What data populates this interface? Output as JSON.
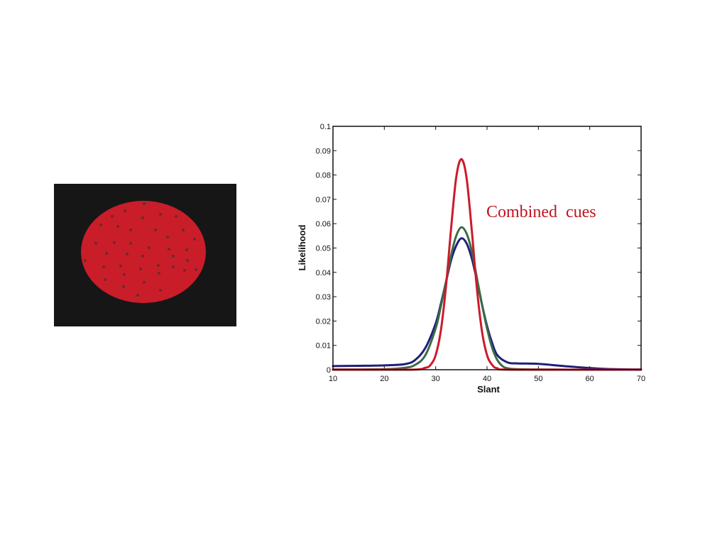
{
  "stimulus": {
    "background_color": "#161616",
    "ellipse_color": "#c91d2a",
    "dot_color": "#6e2a2a"
  },
  "chart_data": {
    "type": "line",
    "xlabel": "Slant",
    "ylabel": "Likelihood",
    "xlim": [
      10,
      70
    ],
    "ylim": [
      0,
      0.1
    ],
    "xticks": [
      10,
      20,
      30,
      40,
      50,
      60,
      70
    ],
    "yticks": [
      0,
      0.01,
      0.02,
      0.03,
      0.04,
      0.05,
      0.06,
      0.07,
      0.08,
      0.09,
      0.1
    ],
    "ytick_labels": [
      "0",
      "0.01",
      "0.02",
      "0.03",
      "0.04",
      "0.05",
      "0.06",
      "0.07",
      "0.08",
      "0.09",
      "0.1"
    ],
    "grid": false,
    "annotation": {
      "text": "Combined  cues",
      "color": "#c0141e"
    },
    "series": [
      {
        "color": "#1f1f7a",
        "x": [
          10,
          15,
          20,
          24,
          26,
          28,
          30,
          31,
          32,
          33,
          34,
          35,
          36,
          37,
          38,
          39,
          40,
          41,
          42,
          44,
          46,
          50,
          55,
          60,
          65,
          70
        ],
        "y": [
          0.0015,
          0.0016,
          0.0018,
          0.0023,
          0.004,
          0.009,
          0.019,
          0.027,
          0.036,
          0.045,
          0.051,
          0.054,
          0.052,
          0.046,
          0.037,
          0.027,
          0.018,
          0.011,
          0.006,
          0.003,
          0.0026,
          0.0024,
          0.0015,
          0.0007,
          0.0002,
          0.0001
        ]
      },
      {
        "color": "#3a6b48",
        "x": [
          10,
          20,
          24,
          26,
          28,
          30,
          31,
          32,
          33,
          34,
          35,
          36,
          37,
          38,
          39,
          40,
          41,
          42,
          43,
          44,
          46,
          50,
          60,
          70
        ],
        "y": [
          0.0001,
          0.0002,
          0.0008,
          0.002,
          0.006,
          0.017,
          0.026,
          0.036,
          0.047,
          0.055,
          0.0585,
          0.056,
          0.049,
          0.038,
          0.027,
          0.017,
          0.009,
          0.004,
          0.0015,
          0.0006,
          0.0002,
          0.0001,
          0.0,
          0.0
        ]
      },
      {
        "color": "#cc1a2b",
        "x": [
          10,
          25,
          28,
          29,
          30,
          31,
          32,
          33,
          34,
          35,
          36,
          37,
          38,
          39,
          40,
          41,
          42,
          45,
          70
        ],
        "y": [
          0.0,
          0.0,
          0.0008,
          0.002,
          0.006,
          0.016,
          0.034,
          0.058,
          0.079,
          0.0865,
          0.079,
          0.058,
          0.034,
          0.016,
          0.006,
          0.002,
          0.0006,
          0.0,
          0.0
        ]
      }
    ]
  }
}
